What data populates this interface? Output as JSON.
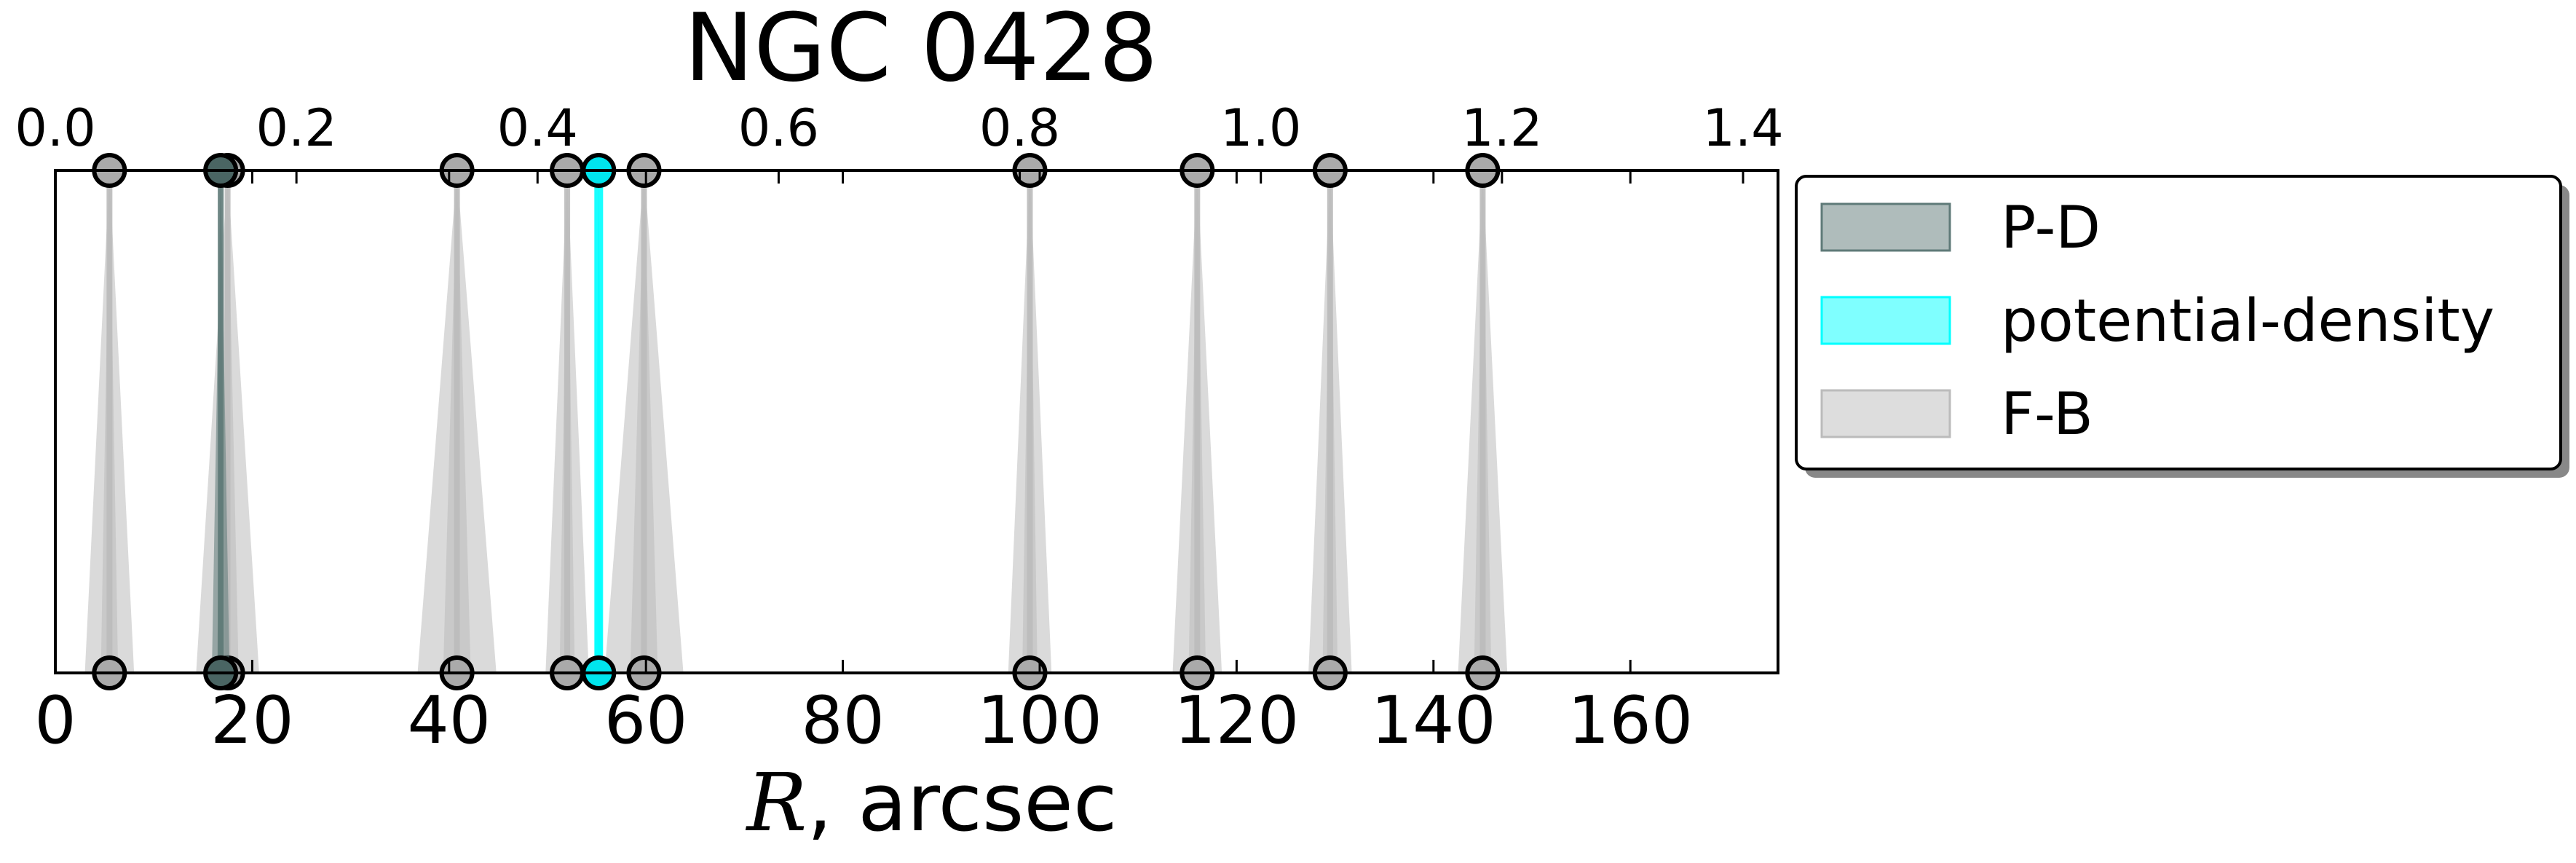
{
  "chart_data": {
    "type": "scatter",
    "title": "NGC 0428",
    "xlabel_math": "R",
    "xlabel_rest": ", arcsec",
    "xlim": [
      0,
      175
    ],
    "xticks": [
      0,
      20,
      40,
      60,
      80,
      100,
      120,
      140,
      160
    ],
    "top_axis": {
      "lim": [
        0,
        1.429
      ],
      "ticks": [
        0.0,
        0.2,
        0.4,
        0.6,
        0.8,
        1.0,
        1.2,
        1.4
      ],
      "tick_labels": [
        "0.0",
        "0.2",
        "0.4",
        "0.6",
        "0.8",
        "1.0",
        "1.2",
        "1.4"
      ]
    },
    "legend": {
      "placement": "outside-right-top",
      "entries": [
        {
          "label": "P-D",
          "color": "#5f7a78"
        },
        {
          "label": "potential-density",
          "color": "#00ffff"
        },
        {
          "label": "F-B",
          "color": "#bbbbbb"
        }
      ]
    },
    "series": [
      {
        "name": "F-B",
        "color": "#bbbbbb",
        "marker_fill": "#aaaaaa",
        "points": [
          {
            "x": 5.5,
            "err": 2.5
          },
          {
            "x": 17.5,
            "err": 3.2
          },
          {
            "x": 40.8,
            "err": 4.0
          },
          {
            "x": 52.0,
            "err": 2.2
          },
          {
            "x": 59.8,
            "err": 4.0
          },
          {
            "x": 99.0,
            "err": 2.2
          },
          {
            "x": 116.0,
            "err": 2.5
          },
          {
            "x": 129.5,
            "err": 2.2
          },
          {
            "x": 145.0,
            "err": 2.5
          }
        ]
      },
      {
        "name": "P-D",
        "color": "#5f7a78",
        "marker_fill": "#4a6563",
        "points": [
          {
            "x": 16.8,
            "err": 0.9
          }
        ]
      },
      {
        "name": "potential-density",
        "color": "#00ffff",
        "marker_fill": "#00e5ee",
        "points": [
          {
            "x": 55.2,
            "err": 0.4
          }
        ]
      }
    ]
  }
}
